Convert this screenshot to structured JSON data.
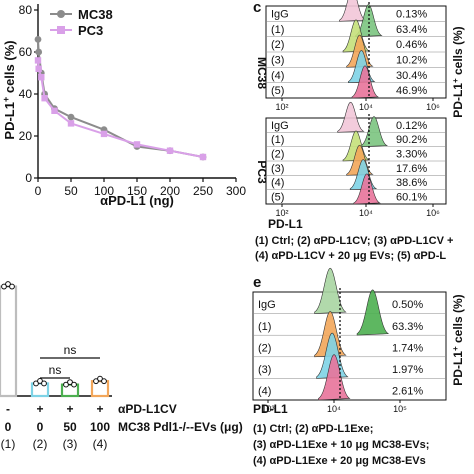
{
  "chart_data": [
    {
      "type": "line",
      "title": "",
      "xlabel": "αPD-L1 (ng)",
      "ylabel_main": "PD-L1",
      "ylabel_sup": "+",
      "ylabel_rest": " cells (%)",
      "xlim": [
        0,
        300
      ],
      "ylim": [
        0,
        80
      ],
      "x_ticks": [
        "0",
        "50",
        "100",
        "150",
        "200",
        "250",
        "300"
      ],
      "y_ticks": [
        "0",
        "20",
        "40",
        "60",
        "80"
      ],
      "legend_position": "top-right",
      "series": [
        {
          "name": "MC38",
          "color": "#8c8c8c",
          "x": [
            0,
            1,
            5,
            10,
            25,
            50,
            100,
            150,
            200,
            250
          ],
          "y": [
            66,
            60,
            50,
            40,
            33,
            29,
            23,
            15,
            13,
            10
          ]
        },
        {
          "name": "PC3",
          "color": "#d9a0e8",
          "x": [
            0,
            1,
            5,
            10,
            25,
            50,
            100,
            150,
            200,
            250
          ],
          "y": [
            56,
            52,
            48,
            38,
            32,
            26,
            21,
            16,
            13,
            10
          ]
        }
      ]
    },
    {
      "type": "histogram",
      "panel_label": "c",
      "x_axis_label": "PD-L1",
      "x_ticks": [
        "10²",
        "10⁴",
        "10⁶"
      ],
      "ylabel_main": "PD-L1",
      "ylabel_sup": "+",
      "ylabel_rest": " cells (%)",
      "groups": [
        {
          "name": "MC38",
          "rows": [
            {
              "label": "IgG",
              "value": "0.13%",
              "color": "#f2c6d8",
              "peak": 0.48
            },
            {
              "label": "(1)",
              "value": "63.4%",
              "color": "#7bc47f",
              "peak": 0.57
            },
            {
              "label": "(2)",
              "value": "0.46%",
              "color": "#c4e07a",
              "peak": 0.5
            },
            {
              "label": "(3)",
              "value": "10.2%",
              "color": "#f2a65a",
              "peak": 0.52
            },
            {
              "label": "(4)",
              "value": "30.4%",
              "color": "#7ed3e6",
              "peak": 0.53
            },
            {
              "label": "(5)",
              "value": "46.9%",
              "color": "#e8739a",
              "peak": 0.55
            }
          ]
        },
        {
          "name": "PC3",
          "rows": [
            {
              "label": "IgG",
              "value": "0.12%",
              "color": "#f2c6d8",
              "peak": 0.47
            },
            {
              "label": "(1)",
              "value": "90.2%",
              "color": "#7bc47f",
              "peak": 0.6
            },
            {
              "label": "(2)",
              "value": "3.30%",
              "color": "#c4e07a",
              "peak": 0.5
            },
            {
              "label": "(3)",
              "value": "17.6%",
              "color": "#f2a65a",
              "peak": 0.52
            },
            {
              "label": "(4)",
              "value": "38.6%",
              "color": "#7ed3e6",
              "peak": 0.54
            },
            {
              "label": "(5)",
              "value": "60.1%",
              "color": "#e8739a",
              "peak": 0.56
            }
          ]
        }
      ],
      "legend_lines": [
        "(1) Ctrl; (2) αPD-L1CV; (3) αPD-L1CV +",
        "(4) αPD-L1CV + 20 μg EVs; (5) αPD-L"
      ]
    },
    {
      "type": "bar",
      "categories": [
        "(1)",
        "(2)",
        "(3)",
        "(4)"
      ],
      "values": [
        96,
        11,
        10,
        13
      ],
      "colors": [
        "#bdbdbd",
        "#7ed3e6",
        "#4caf50",
        "#f2a65a"
      ],
      "significance": [
        "ns",
        "ns"
      ],
      "treatment_rows": [
        {
          "label": "αPD-L1CV",
          "values": [
            "-",
            "+",
            "+",
            "+"
          ]
        },
        {
          "label": "MC38 Pdl1-/--EVs (μg)",
          "values": [
            "0",
            "0",
            "50",
            "100"
          ]
        }
      ]
    },
    {
      "type": "histogram",
      "panel_label": "e",
      "x_axis_label": "PD-L1",
      "x_ticks": [
        "10³",
        "10⁴",
        "10⁵"
      ],
      "ylabel_main": "PD-L1",
      "ylabel_sup": "+",
      "ylabel_rest": " cells (%)",
      "rows": [
        {
          "label": "IgG",
          "value": "0.50%",
          "color": "#a8d5a2",
          "peak": 0.4
        },
        {
          "label": "(1)",
          "value": "63.3%",
          "color": "#4caf50",
          "peak": 0.62
        },
        {
          "label": "(2)",
          "value": "1.74%",
          "color": "#f2a65a",
          "peak": 0.4
        },
        {
          "label": "(3)",
          "value": "1.97%",
          "color": "#7ed3e6",
          "peak": 0.41
        },
        {
          "label": "(4)",
          "value": "2.61%",
          "color": "#e8739a",
          "peak": 0.42
        }
      ],
      "legend_lines": [
        "(1) Ctrl; (2) αPD-L1Exe;",
        "(3) αPD-L1Exe + 10 μg MC38-EVs;",
        "(4) αPD-L1Exe + 20 μg MC38-EVs"
      ]
    }
  ]
}
